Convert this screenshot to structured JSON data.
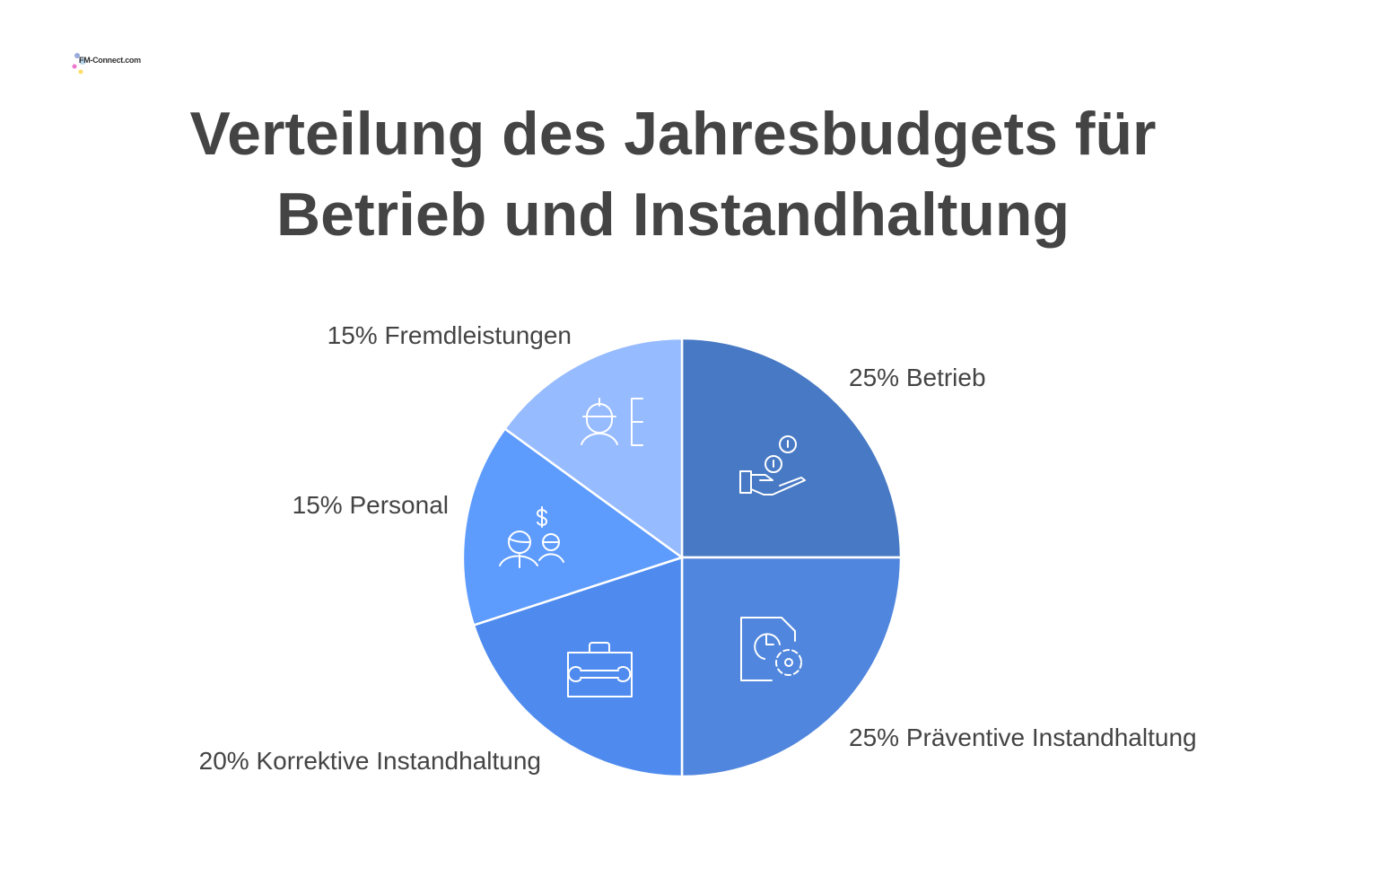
{
  "logo": {
    "text": "FM-Connect.com"
  },
  "chart_data": {
    "type": "pie",
    "title": "Verteilung des Jahresbudgets für Betrieb und Instandhaltung",
    "title_lines": [
      "Verteilung des Jahresbudgets für",
      "Betrieb und Instandhaltung"
    ],
    "categories": [
      "Betrieb",
      "Präventive Instandhaltung",
      "Korrektive Instandhaltung",
      "Personal",
      "Fremdleistungen"
    ],
    "values": [
      25,
      25,
      20,
      15,
      15
    ],
    "unit": "%",
    "colors": [
      "#4879c4",
      "#5086dd",
      "#4f8bef",
      "#5d9bfd",
      "#97bbff"
    ],
    "icons": [
      "hand-coins-icon",
      "document-clock-gear-icon",
      "toolbox-wrench-icon",
      "people-dollar-icon",
      "worker-helmet-icon"
    ],
    "start": "top",
    "direction": "clockwise",
    "legend": "none (outside labels)"
  }
}
